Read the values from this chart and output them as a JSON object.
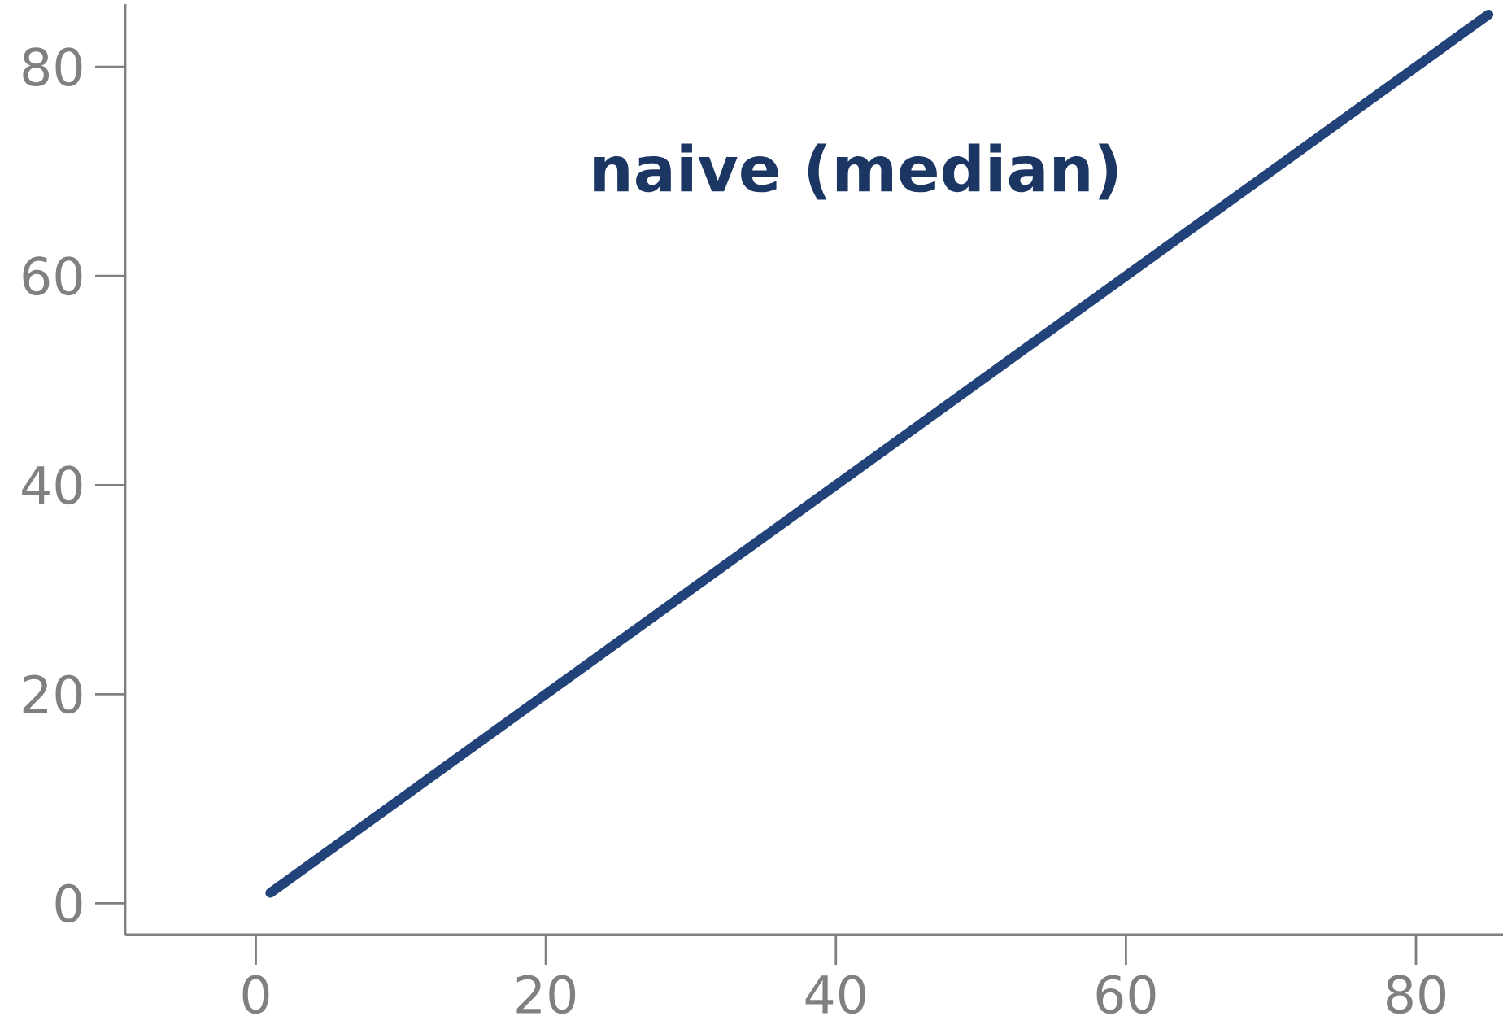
{
  "chart_data": {
    "type": "line",
    "x": [
      1,
      85
    ],
    "series": [
      {
        "name": "naive (median)",
        "color": "#22437a",
        "values": [
          1,
          85
        ]
      }
    ],
    "xlim": [
      -9,
      86
    ],
    "ylim": [
      -3,
      86
    ],
    "xticks": [
      0,
      20,
      40,
      60,
      80
    ],
    "yticks": [
      0,
      20,
      40,
      60,
      80
    ],
    "grid": false,
    "legend": false,
    "marker": "none",
    "line_style": "solid"
  }
}
